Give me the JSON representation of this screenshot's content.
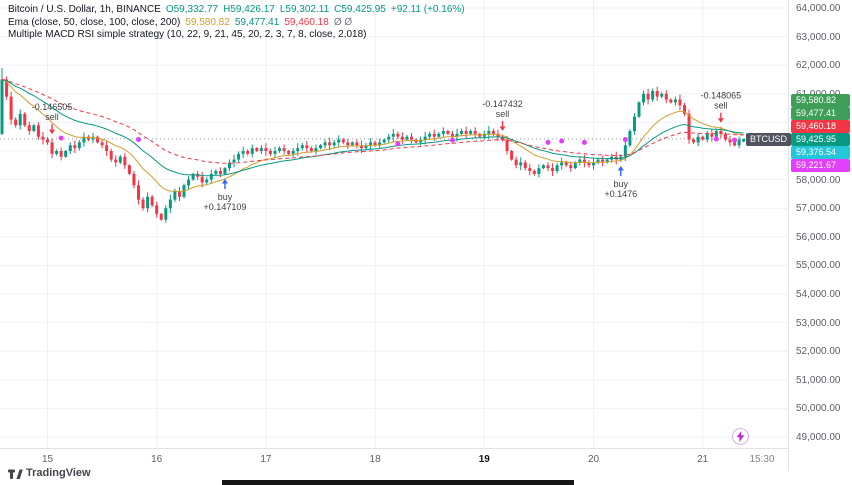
{
  "colors": {
    "up": "#089981",
    "down": "#f23645",
    "ema50": "#cfa12c",
    "ema100": "#089981",
    "ema200": "#f23645",
    "buy": "#2962ff",
    "sell": "#f23645",
    "dot": "#e040fb",
    "grid": "#eef1f7",
    "axis_text": "#5d6069",
    "last_price_line": "#9598a1",
    "signal_text": "#3c3f46"
  },
  "header": {
    "symbol_line": {
      "title": "Bitcoin / U.S. Dollar, 1h, BINANCE",
      "ohlc": [
        "O59,332.77",
        "H59,426.17",
        "L59,302.11",
        "C59,425.95"
      ],
      "change": "+92.11 (+0.16%)"
    },
    "ema_line": {
      "title": "Ema (close, 50, close, 100, close, 200)",
      "v1": "59,580.82",
      "v2": "59,477.41",
      "v3": "59,460.18",
      "suffix": "Ø Ø"
    },
    "strategy_line": "Multiple MACD RSI simple strategy (10, 22, 9, 21, 45, 20, 2, 3, 7, 8, close, 2,018)"
  },
  "price_axis": {
    "labels": [
      "64,000.00",
      "63,000.00",
      "62,000.00",
      "61,000.00",
      "60,000.00",
      "59,000.00",
      "58,000.00",
      "57,000.00",
      "56,000.00",
      "55,000.00",
      "54,000.00",
      "53,000.00",
      "52,000.00",
      "51,000.00",
      "50,000.00",
      "49,000.00"
    ],
    "badges": [
      {
        "text": "59,580.82",
        "bg": "#3f9e57"
      },
      {
        "text": "59,477.41",
        "bg": "#3f9e57"
      },
      {
        "text": "59,460.18",
        "bg": "#f23645"
      },
      {
        "text": "59,425.95",
        "bg": "#089981",
        "tag": "BTCUSD"
      },
      {
        "text": "59,376.54",
        "bg": "#26c6da"
      },
      {
        "text": "59,221.67",
        "bg": "#e040fb"
      }
    ]
  },
  "time_axis": {
    "labels": [
      {
        "text": "15",
        "index": 10
      },
      {
        "text": "16",
        "index": 34
      },
      {
        "text": "17",
        "index": 58
      },
      {
        "text": "18",
        "index": 82
      },
      {
        "text": "19",
        "index": 106,
        "bold": true
      },
      {
        "text": "20",
        "index": 130
      },
      {
        "text": "21",
        "index": 154
      },
      {
        "text": "15:30",
        "x": 762,
        "muted": true
      }
    ]
  },
  "footer": {
    "logo_text": "TradingView"
  },
  "chart_data": {
    "type": "candlestick",
    "title": "Bitcoin / U.S. Dollar, 1h, BINANCE",
    "symbol": "BTCUSD",
    "exchange": "BINANCE",
    "interval": "1h",
    "ylim": [
      49000,
      64000
    ],
    "y_tick_step": 1000,
    "x_day_labels": [
      "15",
      "16",
      "17",
      "18",
      "19",
      "20",
      "21"
    ],
    "last_price": 59425.95,
    "first_open": 59600,
    "last_candle": {
      "o": 59332.77,
      "h": 59426.17,
      "l": 59302.11,
      "c": 59425.95
    },
    "ema_legend": {
      "lengths": [
        50,
        100,
        200
      ],
      "values": [
        59580.82,
        59477.41,
        59460.18
      ]
    },
    "closes": [
      61500,
      60900,
      60100,
      59900,
      60300,
      59900,
      59700,
      59900,
      59500,
      59400,
      59300,
      58900,
      59000,
      58800,
      59000,
      59200,
      59100,
      59300,
      59500,
      59400,
      59500,
      59300,
      59200,
      59000,
      58700,
      58600,
      58800,
      58500,
      58200,
      57800,
      57300,
      57000,
      57400,
      57100,
      56800,
      56600,
      57000,
      57300,
      57600,
      57400,
      57800,
      58000,
      58200,
      58100,
      57900,
      58000,
      58200,
      58300,
      58200,
      58400,
      58600,
      58700,
      58900,
      59000,
      58900,
      59100,
      59000,
      59100,
      59000,
      58900,
      59000,
      59100,
      59000,
      58900,
      59000,
      59100,
      59200,
      59100,
      59000,
      59100,
      59200,
      59300,
      59200,
      59300,
      59400,
      59300,
      59200,
      59300,
      59200,
      59100,
      59200,
      59300,
      59200,
      59300,
      59400,
      59500,
      59600,
      59500,
      59400,
      59500,
      59400,
      59300,
      59400,
      59500,
      59600,
      59500,
      59600,
      59700,
      59600,
      59500,
      59600,
      59700,
      59600,
      59700,
      59600,
      59500,
      59600,
      59700,
      59600,
      59500,
      59400,
      59000,
      58700,
      58500,
      58600,
      58400,
      58300,
      58200,
      58400,
      58500,
      58400,
      58300,
      58500,
      58600,
      58500,
      58400,
      58600,
      58700,
      58600,
      58500,
      58600,
      58700,
      58600,
      58700,
      58800,
      58700,
      58800,
      59200,
      59700,
      60200,
      60700,
      61000,
      60800,
      61100,
      60900,
      61000,
      60800,
      60700,
      60800,
      60600,
      60300,
      59400,
      59300,
      59500,
      59400,
      59600,
      59500,
      59700,
      59600,
      59400,
      59300,
      59200,
      59400,
      59425.95
    ],
    "signals": [
      {
        "type": "sell",
        "value": "-0.146505",
        "index": 11
      },
      {
        "type": "buy",
        "value": "+0.147109",
        "index": 49
      },
      {
        "type": "sell",
        "value": "-0.147432",
        "index": 110
      },
      {
        "type": "buy",
        "value": "+0.1476",
        "index": 136
      },
      {
        "type": "sell",
        "value": "-0.148065",
        "index": 158
      }
    ],
    "dots": [
      {
        "index": 13,
        "price": 59450
      },
      {
        "index": 30,
        "price": 59400
      },
      {
        "index": 87,
        "price": 59250
      },
      {
        "index": 99,
        "price": 59380
      },
      {
        "index": 120,
        "price": 59300
      },
      {
        "index": 123,
        "price": 59350
      },
      {
        "index": 128,
        "price": 59300
      },
      {
        "index": 137,
        "price": 59400
      },
      {
        "index": 157,
        "price": 59420
      },
      {
        "index": 161,
        "price": 59380
      }
    ]
  }
}
